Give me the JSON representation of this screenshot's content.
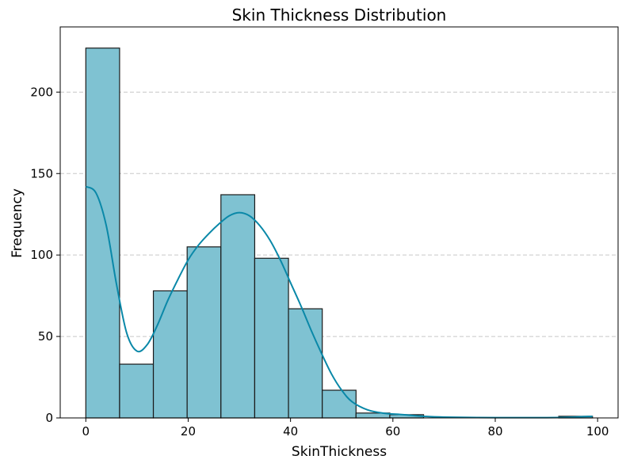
{
  "chart_data": {
    "type": "bar",
    "subtype": "histogram-with-kde",
    "title": "Skin Thickness Distribution",
    "xlabel": "SkinThickness",
    "ylabel": "Frequency",
    "xlim": [
      -5,
      104
    ],
    "ylim": [
      0,
      240
    ],
    "xticks": [
      0,
      20,
      40,
      60,
      80,
      100
    ],
    "yticks": [
      0,
      50,
      100,
      150,
      200
    ],
    "grid": "y-dashed",
    "colors": {
      "bar_fill": "#7fc2d2",
      "bar_edge": "#1a1a1a",
      "kde_line": "#0a88a8"
    },
    "bins": [
      {
        "x0": 0.0,
        "x1": 6.6,
        "count": 227
      },
      {
        "x0": 6.6,
        "x1": 13.2,
        "count": 33
      },
      {
        "x0": 13.2,
        "x1": 19.8,
        "count": 78
      },
      {
        "x0": 19.8,
        "x1": 26.4,
        "count": 105
      },
      {
        "x0": 26.4,
        "x1": 33.0,
        "count": 137
      },
      {
        "x0": 33.0,
        "x1": 39.6,
        "count": 98
      },
      {
        "x0": 39.6,
        "x1": 46.2,
        "count": 67
      },
      {
        "x0": 46.2,
        "x1": 52.8,
        "count": 17
      },
      {
        "x0": 52.8,
        "x1": 59.4,
        "count": 3
      },
      {
        "x0": 59.4,
        "x1": 66.0,
        "count": 2
      },
      {
        "x0": 66.0,
        "x1": 72.6,
        "count": 0
      },
      {
        "x0": 72.6,
        "x1": 79.2,
        "count": 0
      },
      {
        "x0": 79.2,
        "x1": 85.8,
        "count": 0
      },
      {
        "x0": 85.8,
        "x1": 92.4,
        "count": 0
      },
      {
        "x0": 92.4,
        "x1": 99.0,
        "count": 1
      }
    ],
    "kde": {
      "x": [
        0,
        2,
        4,
        6,
        8,
        10,
        12,
        14,
        16,
        18,
        20,
        22,
        24,
        26,
        28,
        30,
        32,
        34,
        36,
        38,
        40,
        42,
        44,
        46,
        48,
        50,
        52,
        55,
        58,
        62,
        66,
        70,
        80,
        90,
        95,
        99
      ],
      "y": [
        142,
        138,
        118,
        82,
        52,
        41,
        45,
        57,
        72,
        85,
        97,
        106,
        113,
        119,
        124,
        126,
        124,
        118,
        109,
        97,
        83,
        69,
        54,
        40,
        27,
        17,
        10,
        5,
        3,
        2,
        1,
        0.5,
        0.2,
        0.2,
        0.5,
        1
      ]
    }
  }
}
